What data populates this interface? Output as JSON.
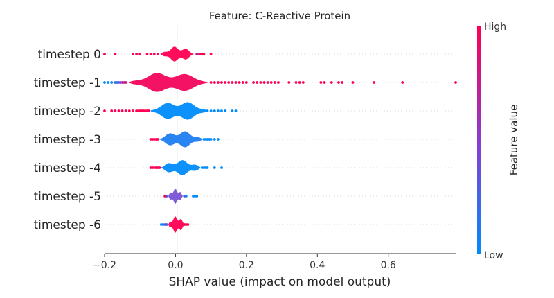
{
  "chart_data": {
    "type": "scatter",
    "subtype": "shap-violin-summary",
    "title": "Feature: C-Reactive Protein",
    "xlabel": "SHAP value (impact on model output)",
    "xlim": [
      -0.2,
      0.79
    ],
    "xticks": [
      -0.2,
      0.0,
      0.2,
      0.4,
      0.6
    ],
    "xtick_labels": [
      "−0.2",
      "0.0",
      "0.2",
      "0.4",
      "0.6"
    ],
    "zero_line": true,
    "colorbar": {
      "label": "Feature value",
      "high_label": "High",
      "low_label": "Low",
      "high_color": "#ff0052",
      "low_color": "#008bfb",
      "placement": "right"
    },
    "rows": [
      {
        "label": "timestep 0",
        "violin": {
          "min": -0.04,
          "max": 0.05,
          "spread": 0.55,
          "color": "#ff0052"
        },
        "points": [
          {
            "x": -0.2,
            "c": 1
          },
          {
            "x": -0.17,
            "c": 1
          },
          {
            "x": -0.12,
            "c": 1
          },
          {
            "x": -0.11,
            "c": 1
          },
          {
            "x": -0.1,
            "c": 1
          },
          {
            "x": -0.08,
            "c": 1
          },
          {
            "x": -0.07,
            "c": 1
          },
          {
            "x": -0.06,
            "c": 1
          },
          {
            "x": -0.05,
            "c": 1
          },
          {
            "x": 0.06,
            "c": 1
          },
          {
            "x": 0.065,
            "c": 0.5
          },
          {
            "x": 0.07,
            "c": 1
          },
          {
            "x": 0.075,
            "c": 1
          },
          {
            "x": 0.08,
            "c": 1
          },
          {
            "x": 0.1,
            "c": 1
          }
        ]
      },
      {
        "label": "timestep -1",
        "violin": {
          "min": -0.13,
          "max": 0.09,
          "spread": 0.75,
          "color": "#f2055c"
        },
        "points": [
          {
            "x": -0.2,
            "c": 0
          },
          {
            "x": -0.19,
            "c": 0
          },
          {
            "x": -0.18,
            "c": 0
          },
          {
            "x": -0.17,
            "c": 0.2
          },
          {
            "x": -0.165,
            "c": 0.2
          },
          {
            "x": -0.16,
            "c": 0.3
          },
          {
            "x": -0.155,
            "c": 0.5
          },
          {
            "x": -0.15,
            "c": 0.6
          },
          {
            "x": -0.145,
            "c": 0.8
          },
          {
            "x": -0.14,
            "c": 0.8
          },
          {
            "x": 0.1,
            "c": 1
          },
          {
            "x": 0.11,
            "c": 1
          },
          {
            "x": 0.12,
            "c": 1
          },
          {
            "x": 0.13,
            "c": 1
          },
          {
            "x": 0.14,
            "c": 1
          },
          {
            "x": 0.15,
            "c": 1
          },
          {
            "x": 0.16,
            "c": 1
          },
          {
            "x": 0.17,
            "c": 1
          },
          {
            "x": 0.18,
            "c": 1
          },
          {
            "x": 0.19,
            "c": 1
          },
          {
            "x": 0.2,
            "c": 1
          },
          {
            "x": 0.22,
            "c": 1
          },
          {
            "x": 0.23,
            "c": 1
          },
          {
            "x": 0.24,
            "c": 1
          },
          {
            "x": 0.25,
            "c": 1
          },
          {
            "x": 0.26,
            "c": 1
          },
          {
            "x": 0.27,
            "c": 1
          },
          {
            "x": 0.28,
            "c": 1
          },
          {
            "x": 0.29,
            "c": 1
          },
          {
            "x": 0.32,
            "c": 1
          },
          {
            "x": 0.34,
            "c": 1
          },
          {
            "x": 0.35,
            "c": 1
          },
          {
            "x": 0.36,
            "c": 1
          },
          {
            "x": 0.41,
            "c": 1
          },
          {
            "x": 0.42,
            "c": 1
          },
          {
            "x": 0.44,
            "c": 1
          },
          {
            "x": 0.46,
            "c": 1
          },
          {
            "x": 0.47,
            "c": 1
          },
          {
            "x": 0.5,
            "c": 1
          },
          {
            "x": 0.56,
            "c": 1
          },
          {
            "x": 0.64,
            "c": 1
          },
          {
            "x": 0.79,
            "c": 1
          }
        ]
      },
      {
        "label": "timestep -2",
        "violin": {
          "min": -0.07,
          "max": 0.09,
          "spread": 0.7,
          "color": "#008bfb"
        },
        "points": [
          {
            "x": -0.2,
            "c": 1
          },
          {
            "x": -0.18,
            "c": 1
          },
          {
            "x": -0.17,
            "c": 1
          },
          {
            "x": -0.16,
            "c": 1
          },
          {
            "x": -0.15,
            "c": 1
          },
          {
            "x": -0.14,
            "c": 1
          },
          {
            "x": -0.13,
            "c": 1
          },
          {
            "x": -0.12,
            "c": 1
          },
          {
            "x": -0.11,
            "c": 1
          },
          {
            "x": -0.105,
            "c": 1
          },
          {
            "x": -0.1,
            "c": 1
          },
          {
            "x": -0.095,
            "c": 1
          },
          {
            "x": -0.09,
            "c": 1
          },
          {
            "x": -0.085,
            "c": 1
          },
          {
            "x": -0.08,
            "c": 1
          },
          {
            "x": -0.075,
            "c": 1
          },
          {
            "x": 0.09,
            "c": 0
          },
          {
            "x": 0.1,
            "c": 0
          },
          {
            "x": 0.11,
            "c": 0
          },
          {
            "x": 0.12,
            "c": 0
          },
          {
            "x": 0.13,
            "c": 0
          },
          {
            "x": 0.14,
            "c": 0
          },
          {
            "x": 0.16,
            "c": 0
          },
          {
            "x": 0.17,
            "c": 0
          }
        ]
      },
      {
        "label": "timestep -3",
        "violin": {
          "min": -0.045,
          "max": 0.075,
          "spread": 0.6,
          "color": "#1e7ef0"
        },
        "points": [
          {
            "x": -0.07,
            "c": 1
          },
          {
            "x": -0.065,
            "c": 1
          },
          {
            "x": -0.06,
            "c": 1
          },
          {
            "x": -0.055,
            "c": 1
          },
          {
            "x": -0.05,
            "c": 1
          },
          {
            "x": 0.08,
            "c": 0
          },
          {
            "x": 0.085,
            "c": 0
          },
          {
            "x": 0.09,
            "c": 0
          },
          {
            "x": 0.095,
            "c": 0
          },
          {
            "x": 0.1,
            "c": 0
          },
          {
            "x": 0.11,
            "c": 0
          },
          {
            "x": 0.12,
            "c": 0
          }
        ]
      },
      {
        "label": "timestep -4",
        "violin": {
          "min": -0.04,
          "max": 0.07,
          "spread": 0.55,
          "color": "#008bfb"
        },
        "points": [
          {
            "x": -0.07,
            "c": 1
          },
          {
            "x": -0.065,
            "c": 1
          },
          {
            "x": -0.06,
            "c": 1
          },
          {
            "x": -0.055,
            "c": 1
          },
          {
            "x": -0.05,
            "c": 1
          },
          {
            "x": -0.045,
            "c": 1
          },
          {
            "x": 0.075,
            "c": 0
          },
          {
            "x": 0.08,
            "c": 0
          },
          {
            "x": 0.085,
            "c": 0
          },
          {
            "x": 0.09,
            "c": 0
          },
          {
            "x": 0.11,
            "c": 0
          },
          {
            "x": 0.13,
            "c": 0
          }
        ]
      },
      {
        "label": "timestep -5",
        "violin": {
          "min": -0.02,
          "max": 0.02,
          "spread": 0.55,
          "color": "#7a52d6"
        },
        "points": [
          {
            "x": -0.03,
            "c": 1
          },
          {
            "x": -0.025,
            "c": 0.3
          },
          {
            "x": 0.025,
            "c": 0.4
          },
          {
            "x": 0.03,
            "c": 0
          },
          {
            "x": 0.05,
            "c": 0
          },
          {
            "x": 0.055,
            "c": 0
          },
          {
            "x": 0.06,
            "c": 0
          }
        ]
      },
      {
        "label": "timestep -6",
        "violin": {
          "min": -0.02,
          "max": 0.025,
          "spread": 0.6,
          "color": "#ff0052"
        },
        "points": [
          {
            "x": -0.04,
            "c": 0
          },
          {
            "x": -0.035,
            "c": 0
          },
          {
            "x": -0.03,
            "c": 0.3
          },
          {
            "x": -0.025,
            "c": 0.3
          },
          {
            "x": 0.025,
            "c": 1
          },
          {
            "x": 0.03,
            "c": 1
          },
          {
            "x": 0.035,
            "c": 1
          }
        ]
      }
    ]
  }
}
